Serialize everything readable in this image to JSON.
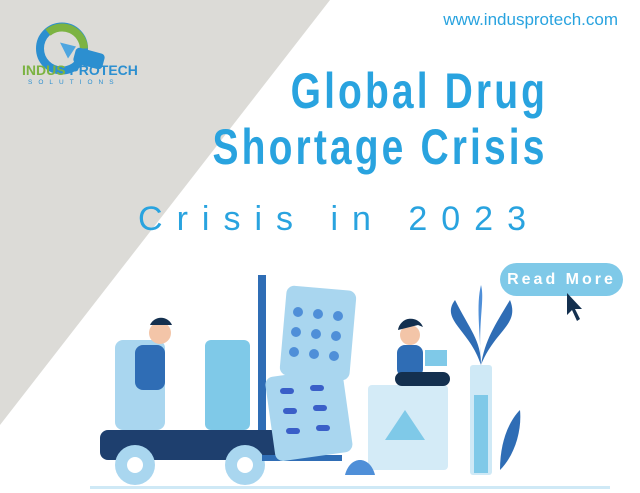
{
  "brand": {
    "name_part1": "INDUS",
    "name_part2": "PROTECH",
    "subtitle": "SOLUTIONS",
    "logo_text": "IPS"
  },
  "website": "www.indusprotech.com",
  "headline": {
    "line1": "Global Drug",
    "line2": "Shortage Crisis",
    "line3": "Crisis in 2023"
  },
  "cta": {
    "label": "Read More"
  },
  "colors": {
    "background_gray": "#dcdbd7",
    "accent_blue": "#29a3df",
    "button": "#7fc9e8",
    "logo_green": "#7cb342",
    "cursor": "#14304f"
  },
  "icons": [
    "ips-logo",
    "cursor-arrow-icon",
    "forklift-illustration",
    "pill-blister-illustration",
    "woman-laptop-illustration",
    "plant-illustration"
  ]
}
